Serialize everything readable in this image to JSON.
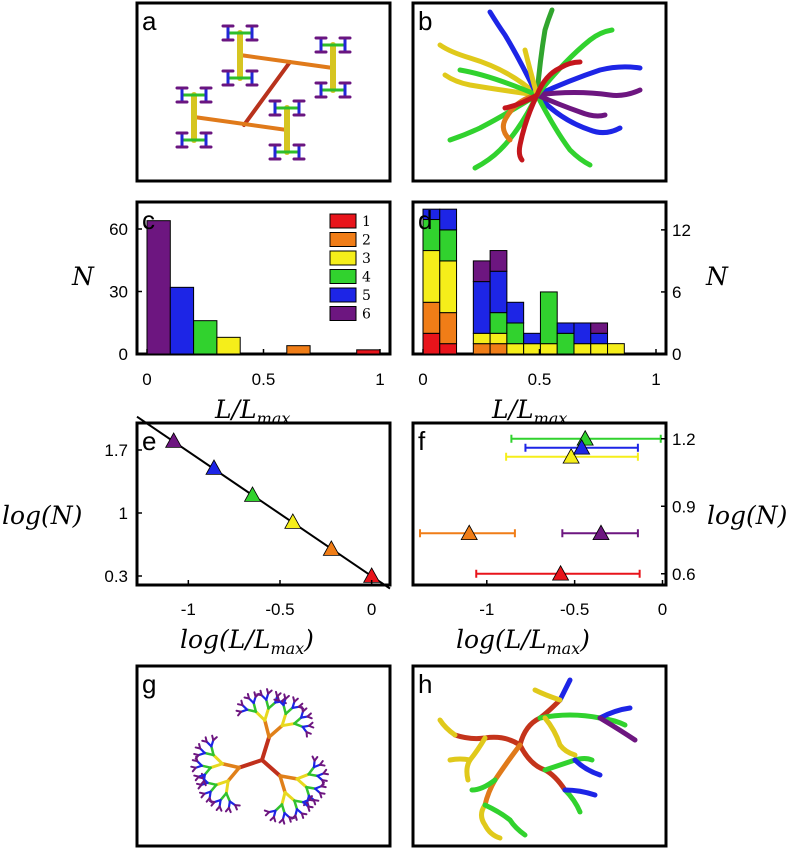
{
  "colors": {
    "1": "#e8141b",
    "2": "#f07d17",
    "3": "#f5ee1a",
    "4": "#31d22e",
    "5": "#1d25e6",
    "6": "#6d1680"
  },
  "panel_letters": [
    "a",
    "b",
    "c",
    "d",
    "e",
    "f",
    "g",
    "h"
  ],
  "chart_data": [
    {
      "panel": "c",
      "type": "bar",
      "xlabel_main": "L/L",
      "xlabel_sub": "max",
      "ylabel": "N",
      "xlim": [
        0,
        1
      ],
      "ylim": [
        0,
        72
      ],
      "xticks": [
        "0",
        "0.5",
        "1"
      ],
      "yticks": [
        "0",
        "30",
        "60"
      ],
      "bin_width": 0.1,
      "legend": [
        "1",
        "2",
        "3",
        "4",
        "5",
        "6"
      ],
      "bars": [
        {
          "x": 0.05,
          "value": 64,
          "order": "6"
        },
        {
          "x": 0.15,
          "value": 32,
          "order": "5"
        },
        {
          "x": 0.25,
          "value": 16,
          "order": "4"
        },
        {
          "x": 0.35,
          "value": 8,
          "order": "3"
        },
        {
          "x": 0.65,
          "value": 4,
          "order": "2"
        },
        {
          "x": 0.95,
          "value": 2,
          "order": "1"
        }
      ]
    },
    {
      "panel": "d",
      "type": "bar",
      "stacked": true,
      "xlabel_main": "L/L",
      "xlabel_sub": "max",
      "ylabel": "N",
      "xlim": [
        0,
        1
      ],
      "ylim": [
        0,
        14.5
      ],
      "xticks": [
        "0",
        "0.5",
        "1"
      ],
      "yticks": [
        "0",
        "6",
        "12"
      ],
      "bin_width": 0.072,
      "stack_order": [
        "1",
        "2",
        "3",
        "4",
        "5",
        "6"
      ],
      "bins": [
        {
          "x": 0.036,
          "counts": {
            "1": 2,
            "2": 3,
            "3": 5,
            "4": 3,
            "5": 1,
            "6": 0
          }
        },
        {
          "x": 0.108,
          "counts": {
            "1": 1,
            "2": 3,
            "3": 5,
            "4": 3,
            "5": 2,
            "6": 0
          }
        },
        {
          "x": 0.18,
          "counts": {
            "1": 0,
            "2": 0,
            "3": 0,
            "4": 0,
            "5": 0,
            "6": 0
          }
        },
        {
          "x": 0.252,
          "counts": {
            "1": 0,
            "2": 1,
            "3": 1,
            "4": 0,
            "5": 5,
            "6": 2
          }
        },
        {
          "x": 0.324,
          "counts": {
            "1": 0,
            "2": 1,
            "3": 1,
            "4": 2,
            "5": 4,
            "6": 2
          }
        },
        {
          "x": 0.396,
          "counts": {
            "1": 0,
            "2": 0,
            "3": 1,
            "4": 2,
            "5": 2,
            "6": 0
          }
        },
        {
          "x": 0.468,
          "counts": {
            "1": 0,
            "2": 0,
            "3": 1,
            "4": 0,
            "5": 1,
            "6": 0
          }
        },
        {
          "x": 0.54,
          "counts": {
            "1": 0,
            "2": 0,
            "3": 1,
            "4": 5,
            "5": 0,
            "6": 0
          }
        },
        {
          "x": 0.612,
          "counts": {
            "1": 0,
            "2": 0,
            "3": 0,
            "4": 2,
            "5": 1,
            "6": 0
          }
        },
        {
          "x": 0.684,
          "counts": {
            "1": 0,
            "2": 0,
            "3": 1,
            "4": 0,
            "5": 2,
            "6": 0
          }
        },
        {
          "x": 0.756,
          "counts": {
            "1": 0,
            "2": 0,
            "3": 1,
            "4": 0,
            "5": 1,
            "6": 1
          }
        },
        {
          "x": 0.828,
          "counts": {
            "1": 0,
            "2": 0,
            "3": 1,
            "4": 0,
            "5": 0,
            "6": 0
          }
        }
      ]
    },
    {
      "panel": "e",
      "type": "scatter",
      "xlabel": "log(L/L",
      "xlabel_sub": "max",
      "xlabel_end": ")",
      "ylabel": "log(N)",
      "xlim": [
        -1.28,
        0.1
      ],
      "ylim": [
        0.2,
        2.0
      ],
      "xticks": [
        -1,
        -0.5,
        0
      ],
      "xtick_labels": [
        "-1",
        "-0.5",
        "0"
      ],
      "yticks": [
        0.3,
        1,
        1.7
      ],
      "ytick_labels": [
        "0.3",
        "1",
        "1.7"
      ],
      "points": [
        {
          "x": 0.0,
          "y": 0.3,
          "order": "1"
        },
        {
          "x": -0.22,
          "y": 0.6,
          "order": "2"
        },
        {
          "x": -0.43,
          "y": 0.9,
          "order": "3"
        },
        {
          "x": -0.65,
          "y": 1.2,
          "order": "4"
        },
        {
          "x": -0.86,
          "y": 1.5,
          "order": "5"
        },
        {
          "x": -1.08,
          "y": 1.8,
          "order": "6"
        }
      ],
      "fit_line": {
        "x": [
          -1.28,
          0.1
        ],
        "y": [
          2.07,
          0.16
        ]
      }
    },
    {
      "panel": "f",
      "type": "scatter",
      "error_bars": true,
      "xlabel": "log(L/L",
      "xlabel_sub": "max",
      "xlabel_end": ")",
      "ylabel": "log(N)",
      "xlim": [
        -1.42,
        0.02
      ],
      "ylim": [
        0.55,
        1.27
      ],
      "xticks": [
        -1,
        -0.5,
        0
      ],
      "xtick_labels": [
        "-1",
        "-0.5",
        "0"
      ],
      "yticks": [
        0.6,
        0.9,
        1.2
      ],
      "ytick_labels": [
        "0.6",
        "0.9",
        "1.2"
      ],
      "points": [
        {
          "x": -0.58,
          "y": 0.6,
          "xmin": -1.06,
          "xmax": -0.13,
          "order": "1"
        },
        {
          "x": -1.1,
          "y": 0.78,
          "xmin": -1.38,
          "xmax": -0.84,
          "order": "2"
        },
        {
          "x": -0.52,
          "y": 1.12,
          "xmin": -0.89,
          "xmax": -0.14,
          "order": "3"
        },
        {
          "x": -0.44,
          "y": 1.2,
          "xmin": -0.86,
          "xmax": -0.01,
          "order": "4"
        },
        {
          "x": -0.46,
          "y": 1.16,
          "xmin": -0.78,
          "xmax": -0.14,
          "order": "5"
        },
        {
          "x": -0.35,
          "y": 0.78,
          "xmin": -0.57,
          "xmax": -0.14,
          "order": "6"
        }
      ]
    }
  ]
}
